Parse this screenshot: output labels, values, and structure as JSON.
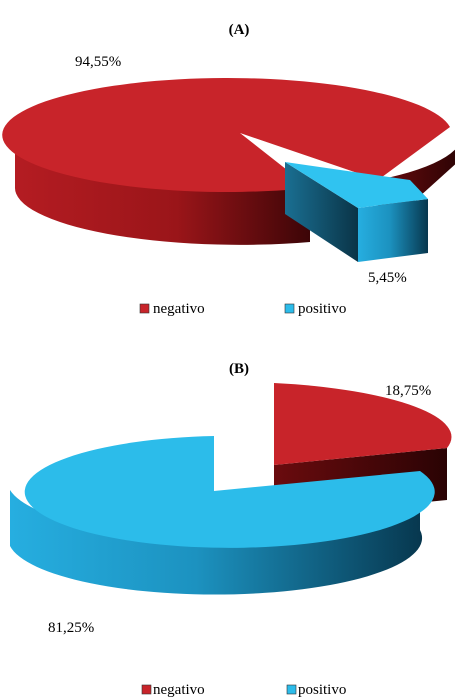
{
  "chart_data": [
    {
      "type": "pie",
      "title": "(A)",
      "slices": [
        {
          "label": "negativo",
          "value": 94.55,
          "value_label": "94,55%",
          "color": "#c8242a",
          "exploded": false
        },
        {
          "label": "positivo",
          "value": 5.45,
          "value_label": "5,45%",
          "color": "#2cbcea",
          "exploded": true
        }
      ],
      "legend": {
        "position": "bottom",
        "entries": [
          "negativo",
          "positivo"
        ]
      },
      "style": "3d"
    },
    {
      "type": "pie",
      "title": "(B)",
      "slices": [
        {
          "label": "negativo",
          "value": 18.75,
          "value_label": "18,75%",
          "color": "#c8242a",
          "exploded": true
        },
        {
          "label": "positivo",
          "value": 81.25,
          "value_label": "81,25%",
          "color": "#2cbcea",
          "exploded": false
        }
      ],
      "legend": {
        "position": "bottom",
        "entries": [
          "negativo",
          "positivo"
        ]
      },
      "style": "3d"
    }
  ]
}
